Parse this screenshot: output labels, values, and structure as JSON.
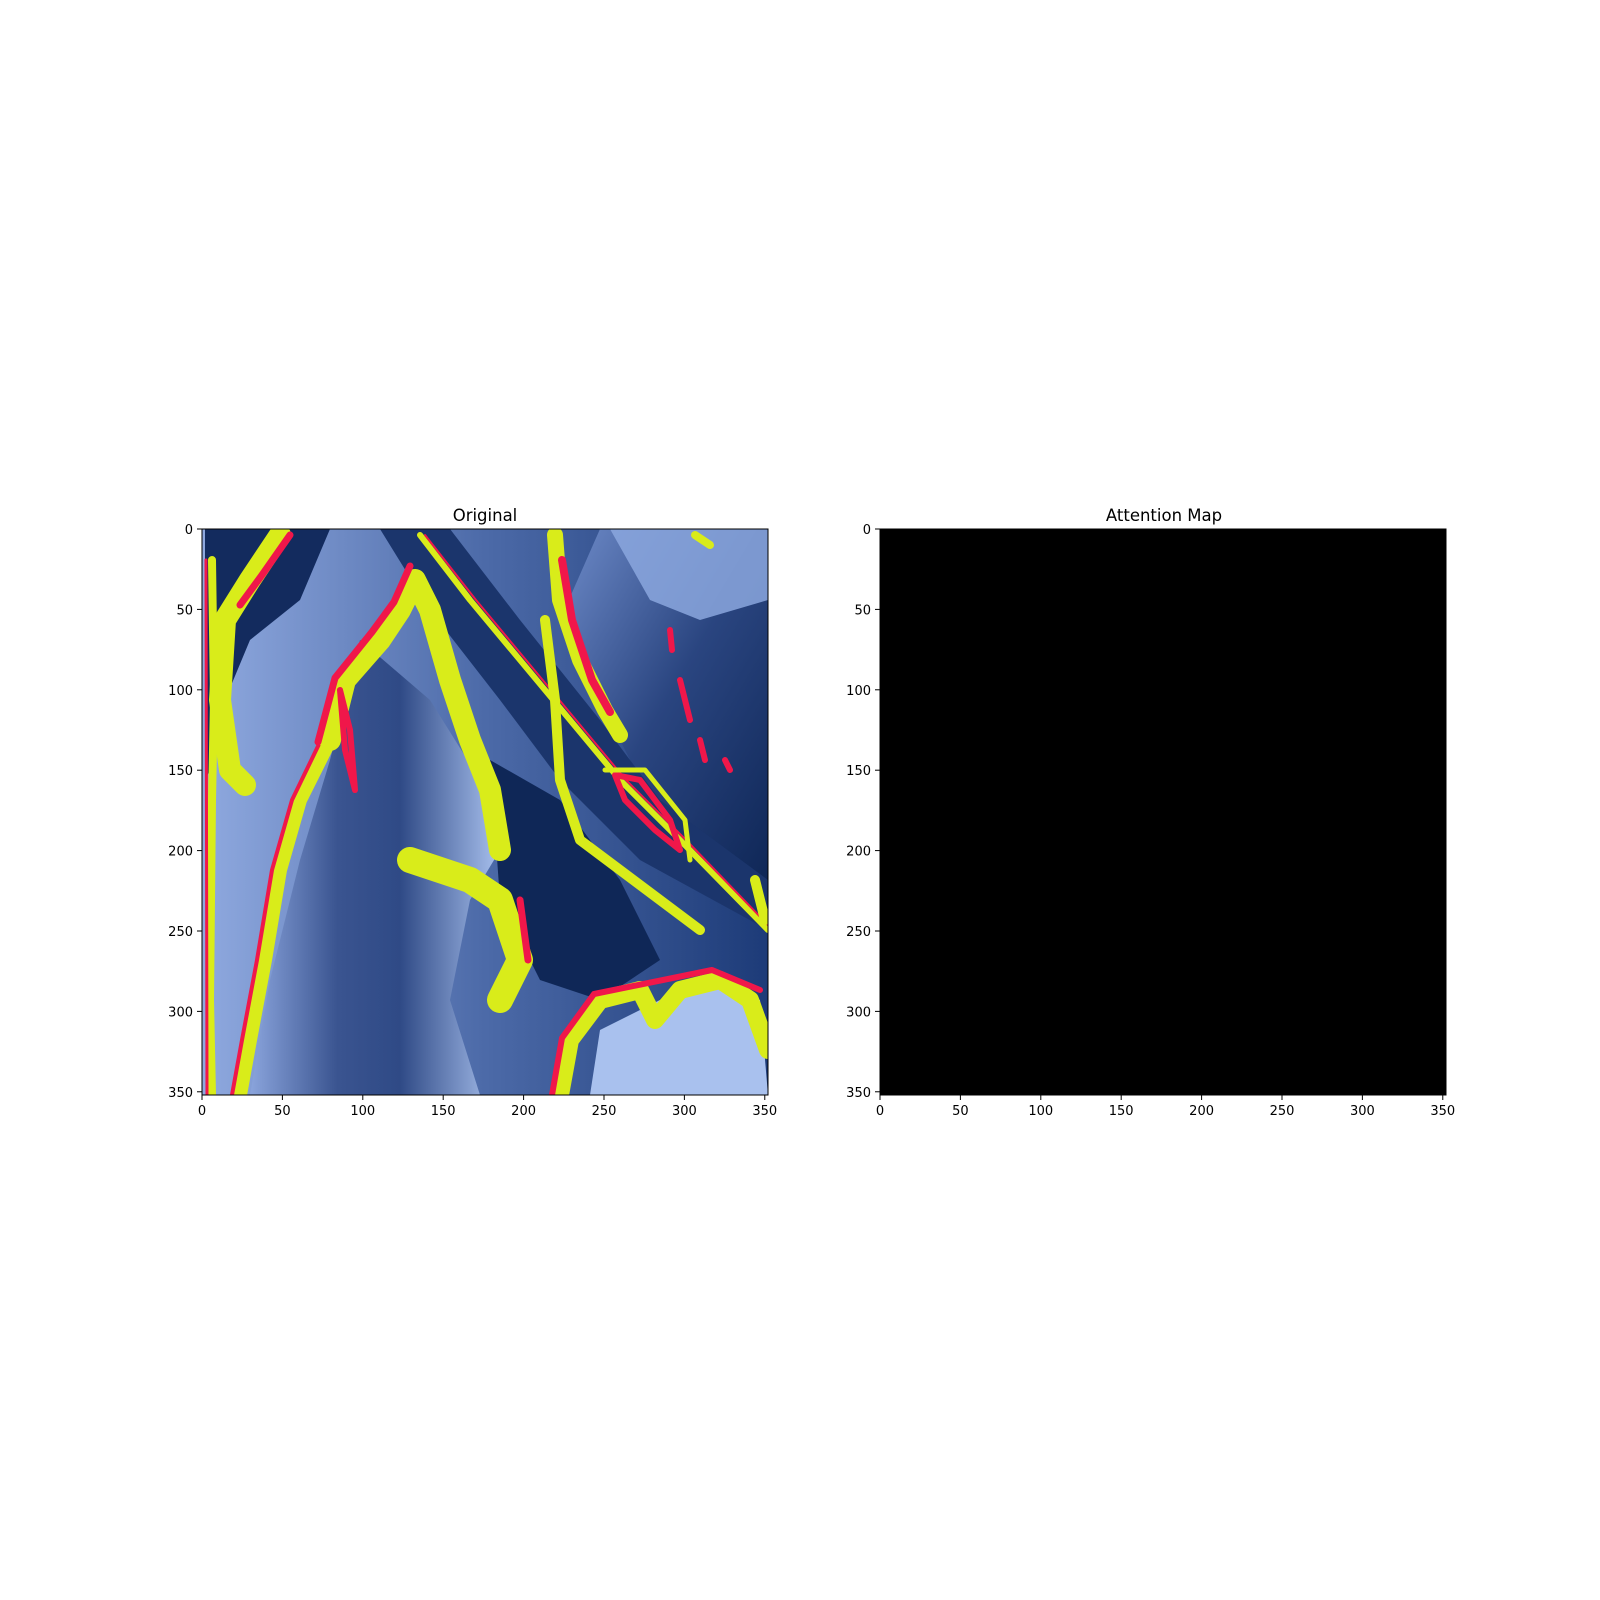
{
  "chart_data": [
    {
      "type": "heatmap",
      "title": "Original",
      "xlim": [
        0,
        352
      ],
      "ylim": [
        352,
        0
      ],
      "x_ticks": [
        "0",
        "50",
        "100",
        "150",
        "200",
        "250",
        "300",
        "350"
      ],
      "y_ticks": [
        "0",
        "50",
        "100",
        "150",
        "200",
        "250",
        "300",
        "350"
      ],
      "grid": false,
      "colors": {
        "dark_blue": "#0f2757",
        "mid_blue": "#4c6aa8",
        "light_blue": "#9fb8ea",
        "yellow": "#d9ec1a",
        "red": "#f0174a"
      },
      "content": "false-color image"
    },
    {
      "type": "heatmap",
      "title": "Attention Map",
      "xlim": [
        0,
        352
      ],
      "ylim": [
        352,
        0
      ],
      "x_ticks": [
        "0",
        "50",
        "100",
        "150",
        "200",
        "250",
        "300",
        "350"
      ],
      "y_ticks": [
        "0",
        "50",
        "100",
        "150",
        "200",
        "250",
        "300",
        "350"
      ],
      "grid": false,
      "fill_color": "#000000",
      "values": "all zero"
    }
  ]
}
